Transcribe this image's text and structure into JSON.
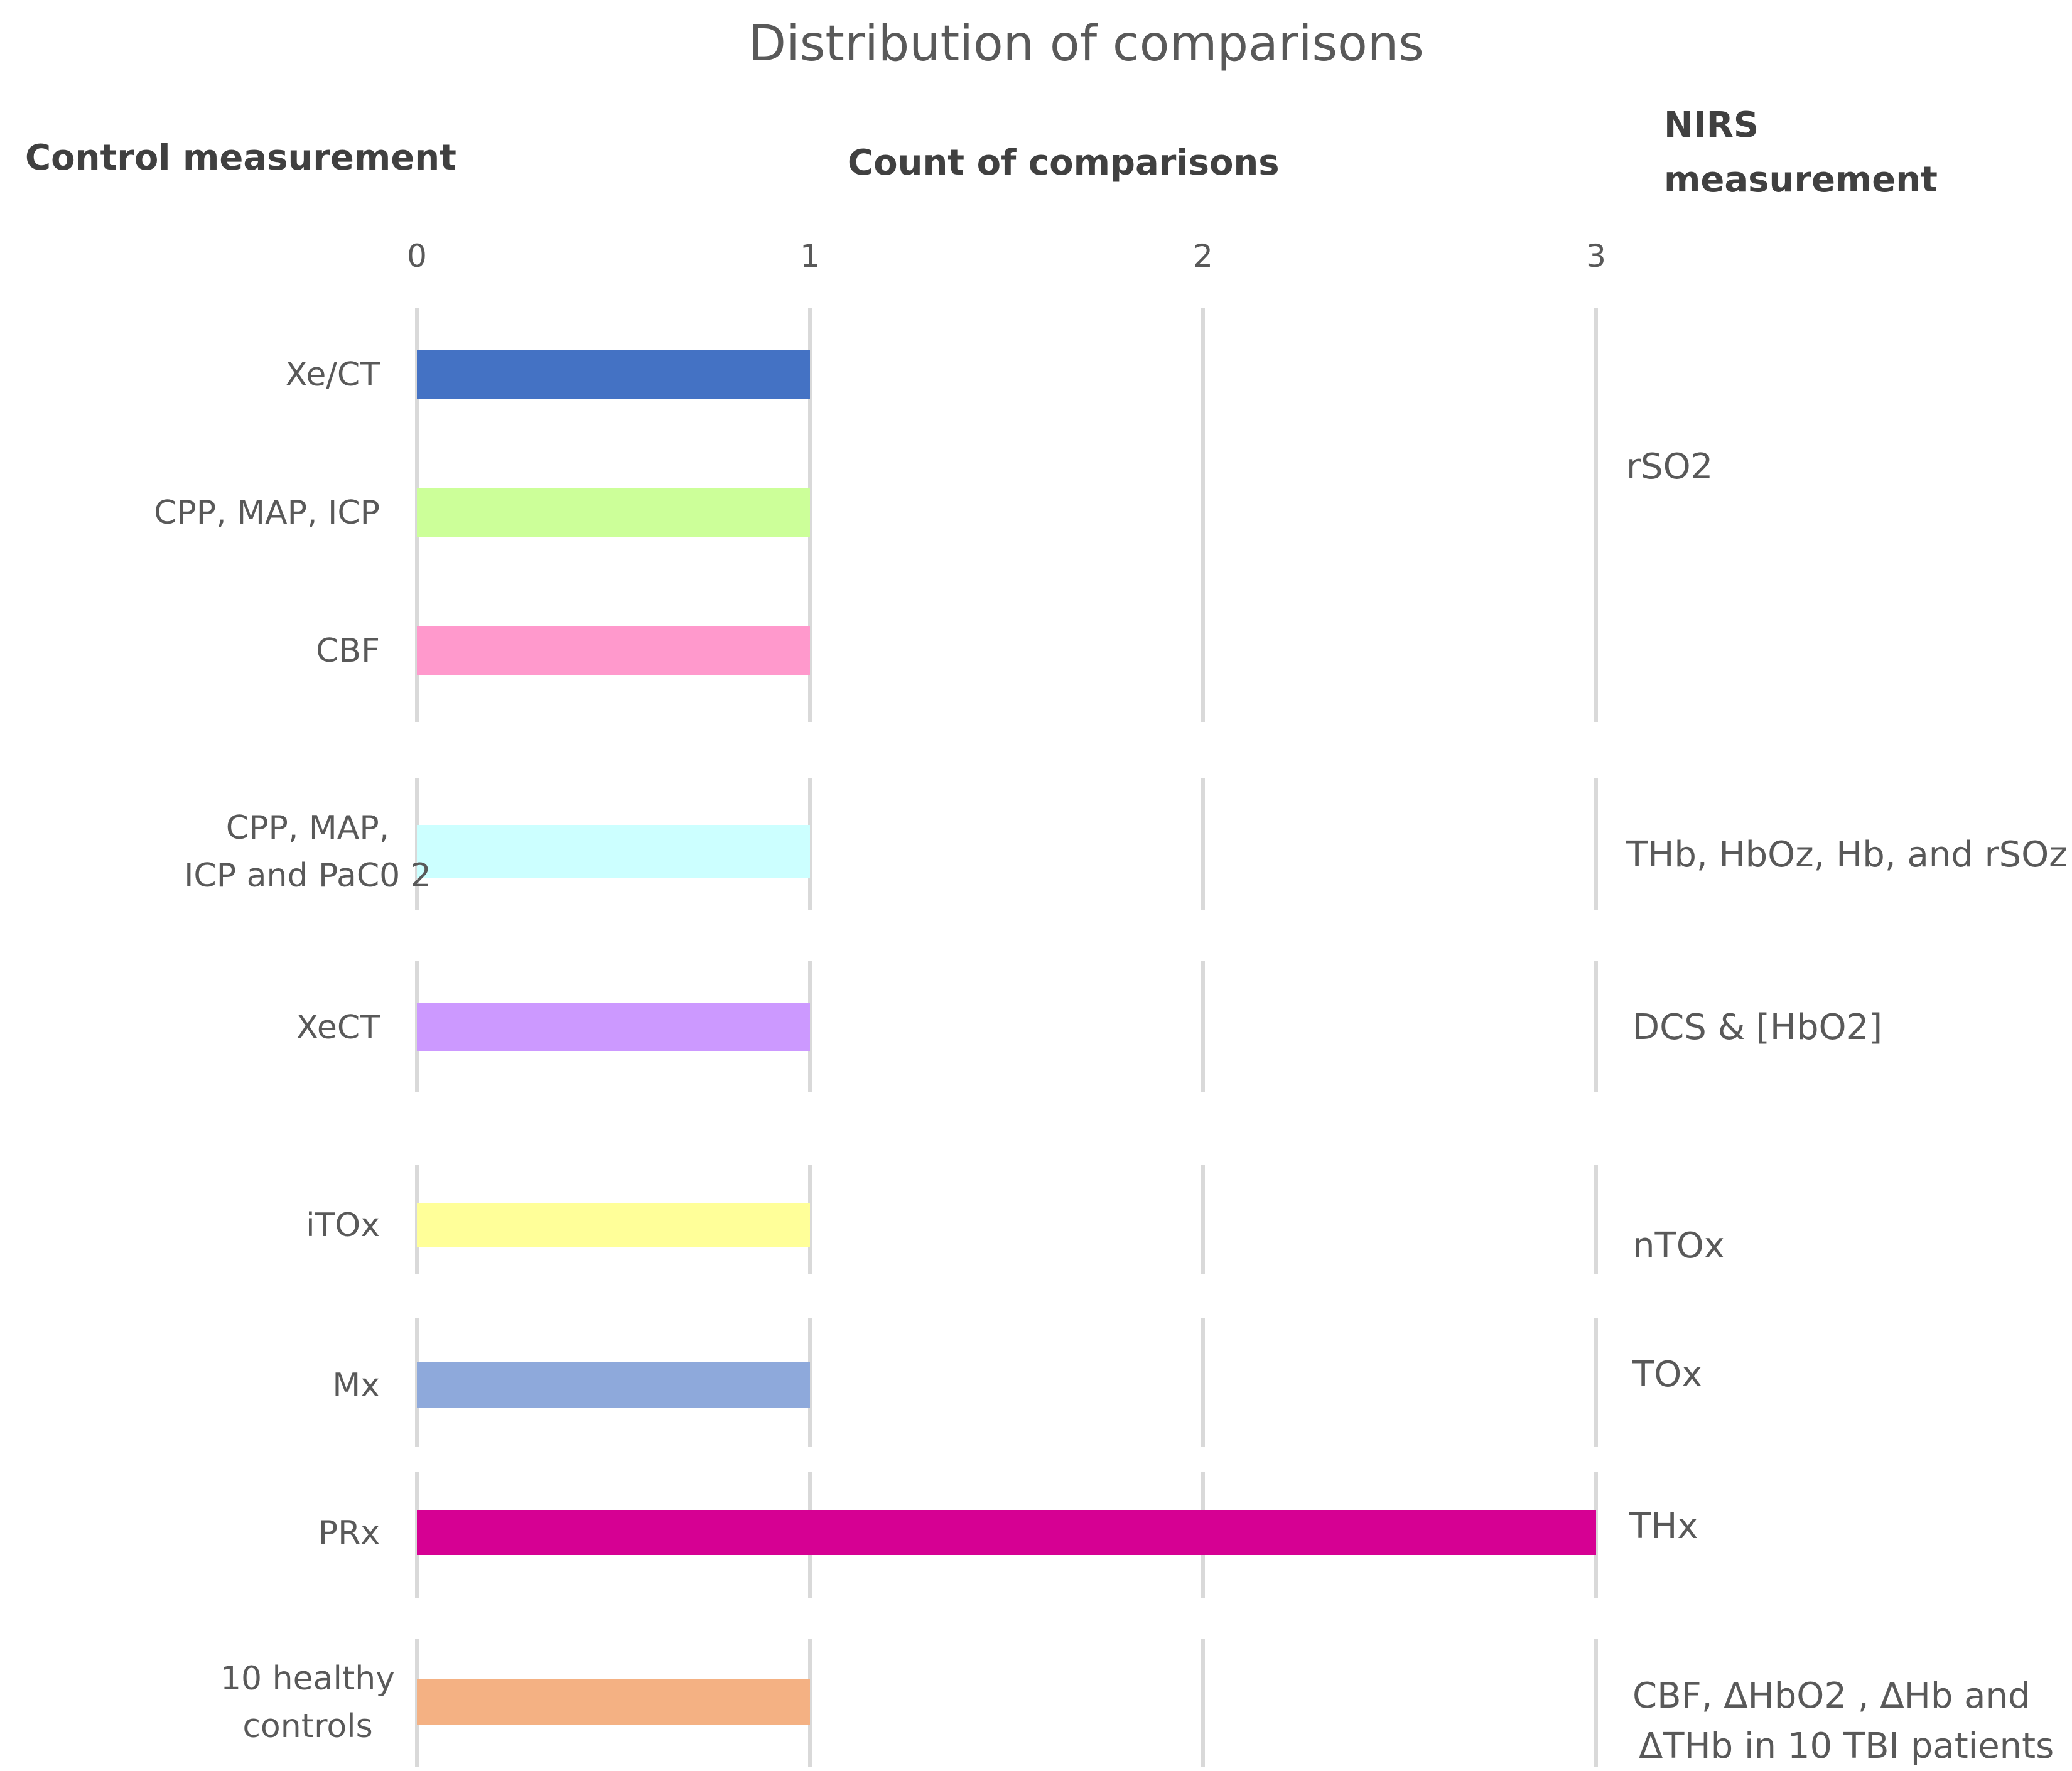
{
  "chart_data": {
    "type": "bar",
    "orientation": "horizontal",
    "title": "Distribution of comparisons",
    "xlabel": "Count of comparisons",
    "left_header": "Control measurement",
    "right_header": "NIRS measurement",
    "right_header_lines": [
      "NIRS",
      "measurement"
    ],
    "xlim": [
      0,
      3
    ],
    "xticks": [
      "0",
      "1",
      "2",
      "3"
    ],
    "categories": [
      "Xe/CT",
      "CPP, MAP, ICP",
      "CBF",
      "CPP, MAP, ICP and PaC0 2",
      "XeCT",
      "iTOx",
      "Mx",
      "PRx",
      "10 healthy controls"
    ],
    "values": [
      1,
      1,
      1,
      1,
      1,
      1,
      1,
      3,
      1
    ],
    "colors": [
      "#4472C4",
      "#CCFF99",
      "#FF99CC",
      "#CCFFFF",
      "#CC99FF",
      "#FFFF99",
      "#8EA9DB",
      "#D60093",
      "#F4B183"
    ],
    "groups": [
      {
        "nirs": "rSO2",
        "categories": [
          "Xe/CT",
          "CPP, MAP, ICP",
          "CBF"
        ]
      },
      {
        "nirs": "THb, HbOz, Hb, and rSOz",
        "categories": [
          "CPP, MAP, ICP and PaC0 2"
        ]
      },
      {
        "nirs": "DCS & [HbO2]",
        "categories": [
          "XeCT"
        ]
      },
      {
        "nirs": "nTOx",
        "categories": [
          "iTOx"
        ]
      },
      {
        "nirs": "TOx",
        "categories": [
          "Mx"
        ]
      },
      {
        "nirs": "THx",
        "categories": [
          "PRx"
        ]
      },
      {
        "nirs": "CBF, ΔHbO2 , ΔHb and ΔTHb in 10 TBI patients",
        "categories": [
          "10 healthy controls"
        ]
      }
    ]
  }
}
